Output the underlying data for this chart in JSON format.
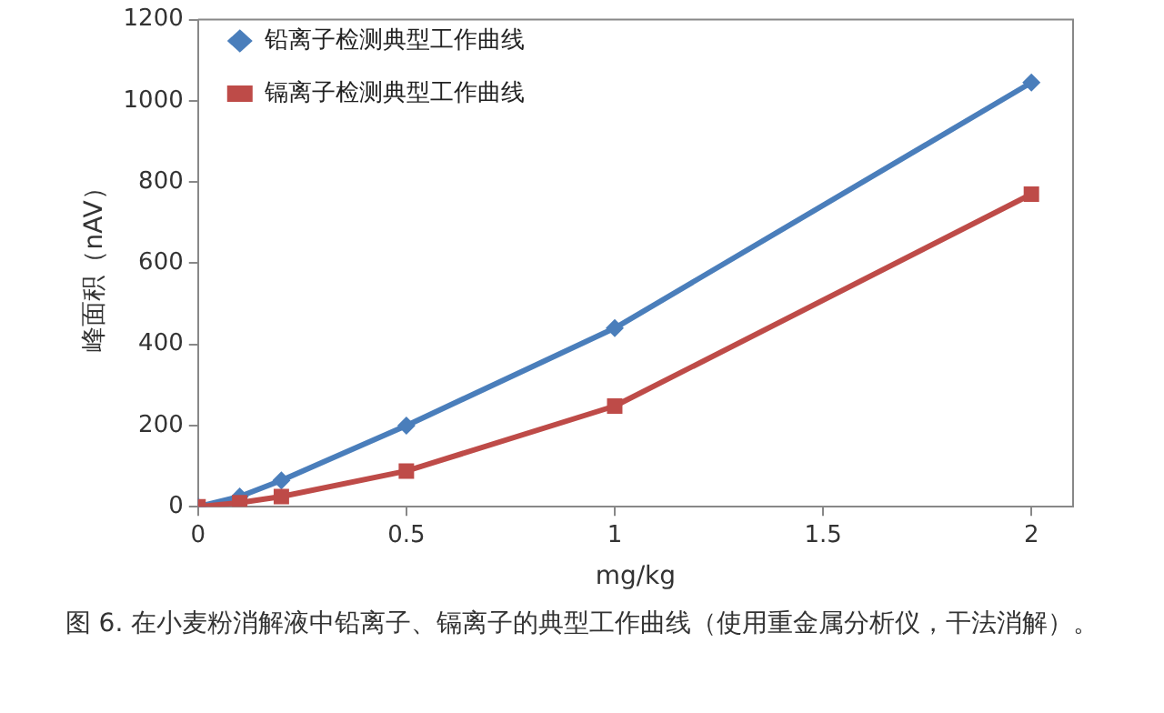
{
  "chart_data": {
    "type": "line",
    "xlabel": "mg/kg",
    "ylabel": "峰面积（nAV）",
    "annotations": [
      "图 6. 在小麦粉消解液中铅离子、镉离子的典型工作曲线（使用重金属分析仪，干法消解）。"
    ],
    "x": [
      0,
      0.1,
      0.2,
      0.5,
      1,
      2
    ],
    "series": [
      {
        "name": "铅离子检测典型工作曲线",
        "color": "#4a7ebb",
        "marker": "diamond",
        "values": [
          0,
          25,
          65,
          200,
          440,
          1045
        ]
      },
      {
        "name": "镉离子检测典型工作曲线",
        "color": "#be4b48",
        "marker": "square",
        "values": [
          0,
          10,
          25,
          88,
          248,
          770
        ]
      }
    ],
    "xlim": [
      0,
      2.1
    ],
    "xticks": [
      0,
      0.5,
      1,
      1.5,
      2
    ],
    "ylim": [
      0,
      1200
    ],
    "yticks": [
      0,
      200,
      400,
      600,
      800,
      1000,
      1200
    ],
    "grid": false,
    "legend": "top left",
    "line_style": "solid"
  }
}
